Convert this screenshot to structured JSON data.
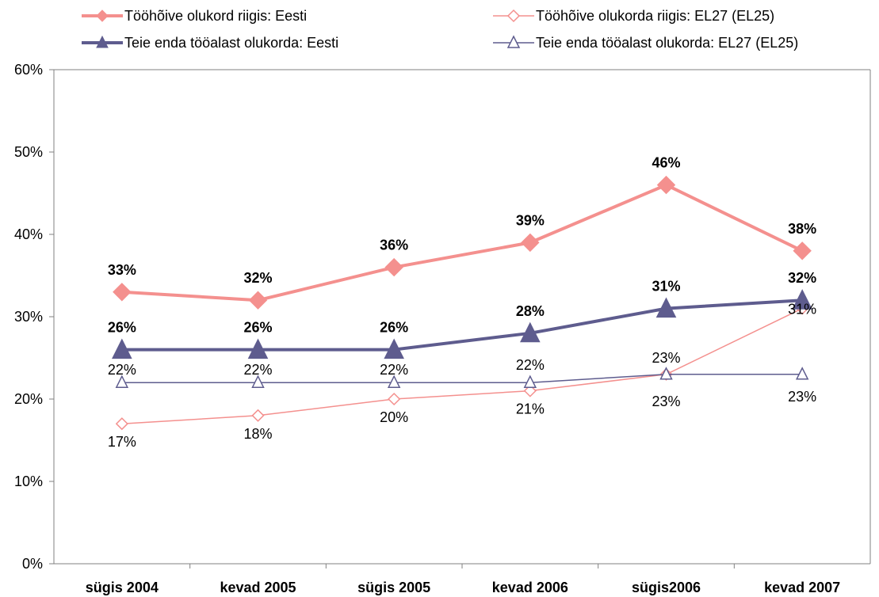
{
  "chart_data": {
    "type": "line",
    "title": "",
    "xlabel": "",
    "ylabel": "",
    "ylim": [
      0,
      60
    ],
    "y_ticks": [
      "0%",
      "10%",
      "20%",
      "30%",
      "40%",
      "50%",
      "60%"
    ],
    "categories": [
      "sügis 2004",
      "kevad 2005",
      "sügis 2005",
      "kevad 2006",
      "sügis2006",
      "kevad 2007"
    ],
    "legend_position": "top",
    "grid": false,
    "series": [
      {
        "name": "Tööhõive olukord riigis: Eesti",
        "values": [
          33,
          32,
          36,
          39,
          46,
          38
        ],
        "labels": [
          "33%",
          "32%",
          "36%",
          "39%",
          "46%",
          "38%"
        ],
        "color": "#F4908E",
        "marker": "diamond-filled",
        "line": "thick",
        "label_position": "above"
      },
      {
        "name": "Tööhõive olukorda riigis: EL27 (EL25)",
        "values": [
          17,
          18,
          20,
          21,
          23,
          31
        ],
        "labels": [
          "17%",
          "18%",
          "20%",
          "21%",
          "23%",
          "31%"
        ],
        "color": "#F4908E",
        "marker": "diamond-open",
        "line": "thin",
        "label_position": "below"
      },
      {
        "name": "Teie enda tööalast olukorda: Eesti",
        "values": [
          26,
          26,
          26,
          28,
          31,
          32
        ],
        "labels": [
          "26%",
          "26%",
          "26%",
          "28%",
          "31%",
          "32%"
        ],
        "color": "#5E5C8E",
        "marker": "triangle-filled",
        "line": "thick",
        "label_position": "above"
      },
      {
        "name": "Teie enda tööalast olukorda: EL27 (EL25)",
        "values": [
          22,
          22,
          22,
          22,
          23,
          23
        ],
        "labels": [
          "22%",
          "22%",
          "22%",
          "22%",
          "23%",
          "23%"
        ],
        "color": "#5E5C8E",
        "marker": "triangle-open",
        "line": "thin",
        "label_position": "mixed"
      }
    ]
  }
}
